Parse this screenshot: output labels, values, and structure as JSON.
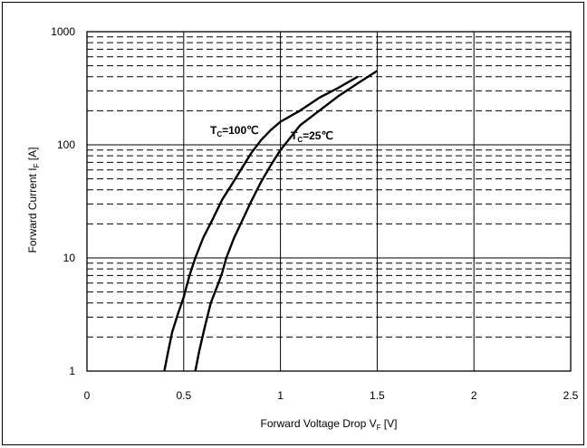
{
  "chart_data": {
    "type": "line",
    "title": "",
    "xlabel": "Forward Voltage Drop V",
    "xlabel_sub": "F",
    "xlabel_unit": " [V]",
    "ylabel": "Forward Current I",
    "ylabel_sub": "F",
    "ylabel_unit": " [A]",
    "xlim": [
      0,
      2.5
    ],
    "ylim": [
      1,
      1000
    ],
    "yscale": "log",
    "grid": true,
    "x_ticks": [
      "0",
      "0.5",
      "1",
      "1.5",
      "2",
      "2.5"
    ],
    "y_ticks": [
      "1",
      "10",
      "100",
      "1000"
    ],
    "series": [
      {
        "label_prefix": "T",
        "label_sub": "C",
        "label_rest": "=100℃",
        "points": [
          [
            0.4,
            1
          ],
          [
            0.42,
            1.5
          ],
          [
            0.44,
            2.2
          ],
          [
            0.47,
            3.2
          ],
          [
            0.5,
            4.5
          ],
          [
            0.53,
            7
          ],
          [
            0.56,
            10
          ],
          [
            0.6,
            15
          ],
          [
            0.65,
            22
          ],
          [
            0.7,
            33
          ],
          [
            0.75,
            45
          ],
          [
            0.8,
            62
          ],
          [
            0.85,
            85
          ],
          [
            0.9,
            110
          ],
          [
            0.95,
            135
          ],
          [
            1.0,
            160
          ],
          [
            1.1,
            200
          ],
          [
            1.2,
            260
          ],
          [
            1.3,
            320
          ],
          [
            1.4,
            400
          ]
        ]
      },
      {
        "label_prefix": "T",
        "label_sub": "C",
        "label_rest": "=25℃",
        "points": [
          [
            0.56,
            1
          ],
          [
            0.58,
            1.5
          ],
          [
            0.61,
            2.5
          ],
          [
            0.64,
            4
          ],
          [
            0.68,
            6
          ],
          [
            0.7,
            7.5
          ],
          [
            0.72,
            10
          ],
          [
            0.76,
            15
          ],
          [
            0.8,
            21
          ],
          [
            0.85,
            32
          ],
          [
            0.9,
            47
          ],
          [
            0.95,
            66
          ],
          [
            1.0,
            90
          ],
          [
            1.05,
            115
          ],
          [
            1.1,
            148
          ],
          [
            1.2,
            200
          ],
          [
            1.3,
            270
          ],
          [
            1.4,
            350
          ],
          [
            1.5,
            450
          ]
        ]
      }
    ]
  }
}
